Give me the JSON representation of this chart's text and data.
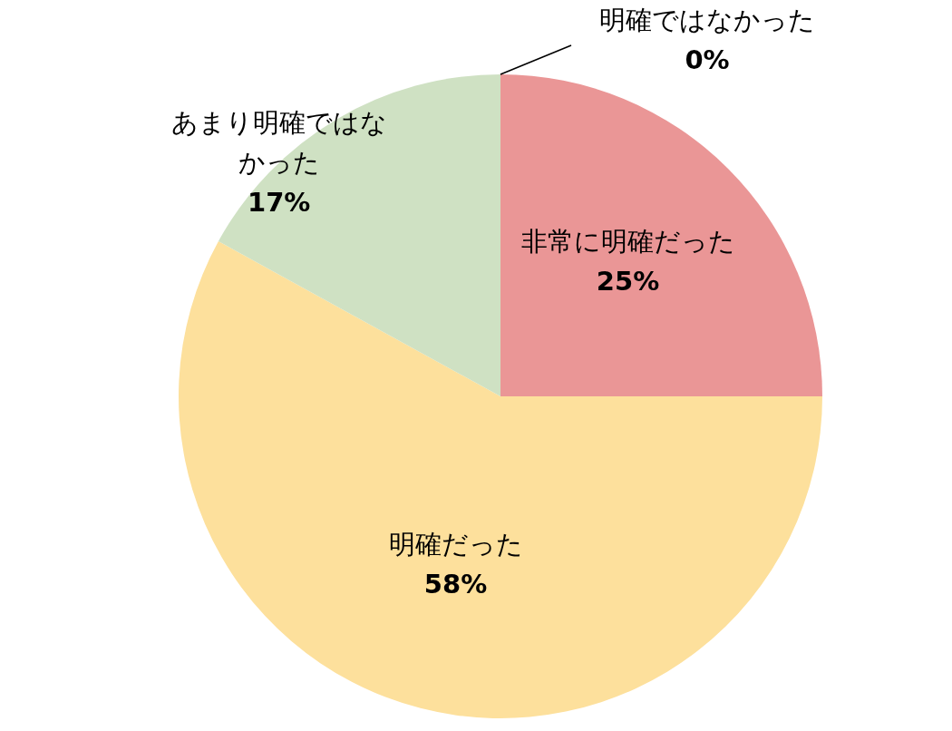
{
  "chart_data": {
    "type": "pie",
    "categories": [
      "非常に明確だった",
      "明確だった",
      "あまり明確ではなかった",
      "明確ではなかった"
    ],
    "values": [
      25,
      58,
      17,
      0
    ],
    "value_labels": [
      "25%",
      "58%",
      "17%",
      "0%"
    ],
    "colors": [
      "#ea9696",
      "#fde09c",
      "#cfe1c3",
      "#c9c9c9"
    ],
    "legend": false
  }
}
